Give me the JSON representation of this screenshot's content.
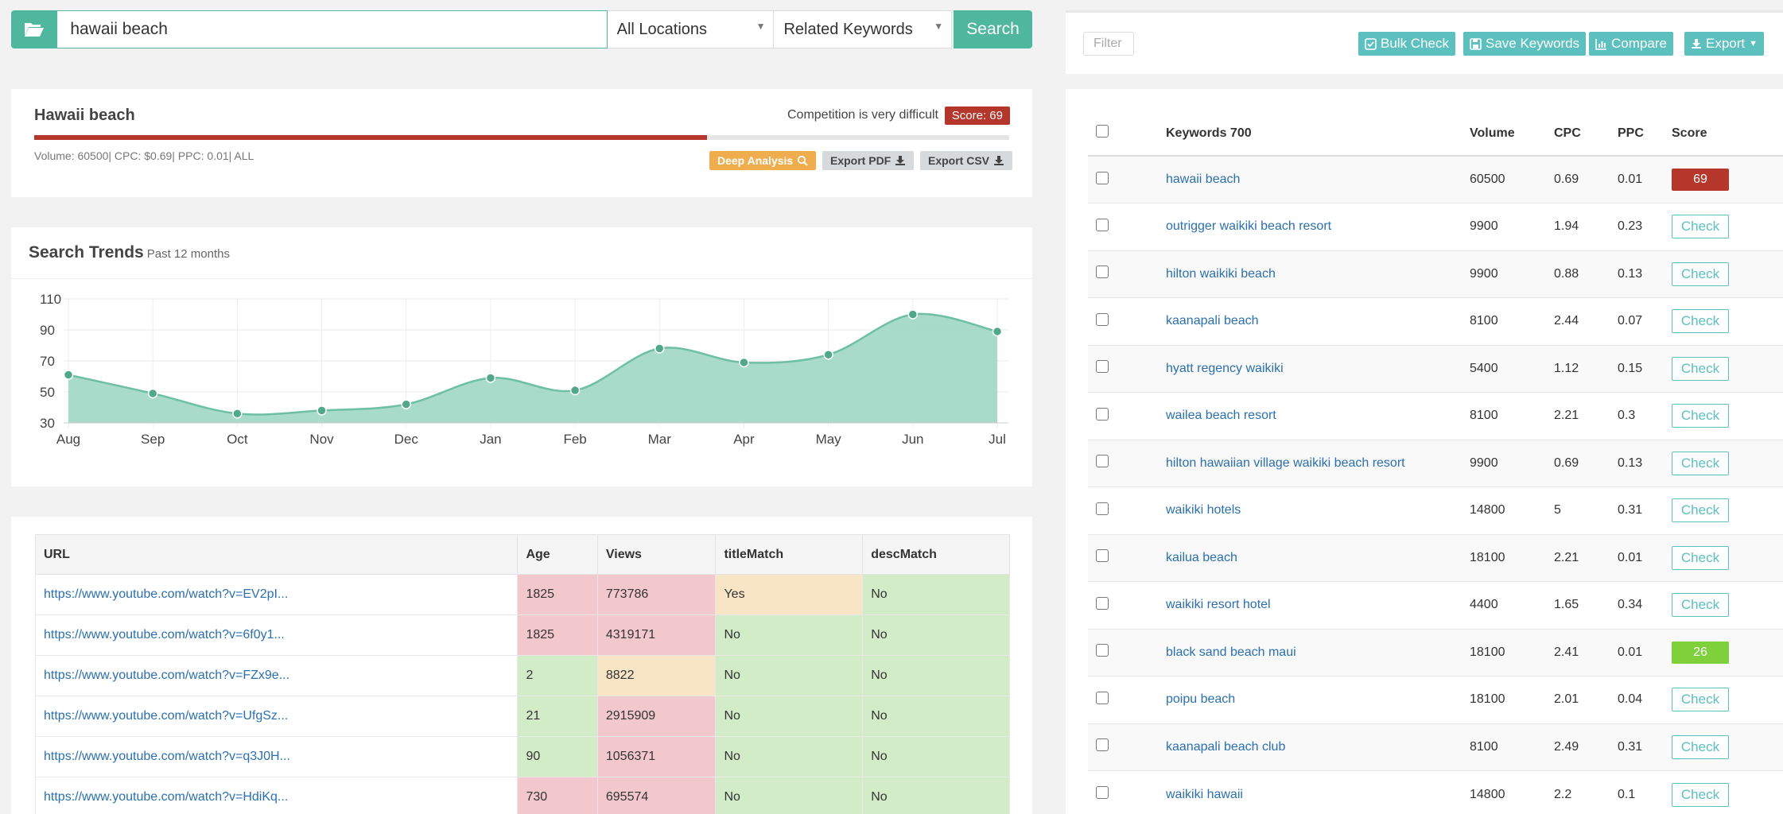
{
  "search": {
    "keyword": "hawaii beach",
    "location": "All Locations",
    "mode": "Related Keywords",
    "button_label": "Search"
  },
  "keyword_card": {
    "title": "Hawaii beach",
    "competition_text": "Competition is very difficult",
    "score_label": "Score: 69",
    "score_value": 69,
    "meta": "Volume: 60500| CPC: $0.69| PPC: 0.01| ALL",
    "deep_analysis_label": "Deep Analysis",
    "export_pdf_label": "Export PDF",
    "export_csv_label": "Export CSV"
  },
  "trends": {
    "title": "Search Trends",
    "subtitle": "Past 12 months"
  },
  "chart_data": {
    "type": "area",
    "categories": [
      "Aug",
      "Sep",
      "Oct",
      "Nov",
      "Dec",
      "Jan",
      "Feb",
      "Mar",
      "Apr",
      "May",
      "Jun",
      "Jul"
    ],
    "values": [
      61,
      49,
      36,
      38,
      42,
      59,
      51,
      78,
      69,
      74,
      100,
      89
    ],
    "ylim": [
      30,
      110
    ],
    "yticks": [
      30,
      50,
      70,
      90,
      110
    ],
    "grid": true,
    "colors": {
      "fill": "#a3d9c7",
      "line": "#6dbfa5",
      "point": "#4fa88a"
    }
  },
  "results": {
    "columns": [
      "URL",
      "Age",
      "Views",
      "titleMatch",
      "descMatch"
    ],
    "rows": [
      {
        "url": "https://www.youtube.com/watch?v=EV2pI...",
        "age": "1825",
        "views": "773786",
        "title": "Yes",
        "desc": "No",
        "c": [
          "red",
          "red",
          "yellow",
          "green"
        ]
      },
      {
        "url": "https://www.youtube.com/watch?v=6f0y1...",
        "age": "1825",
        "views": "4319171",
        "title": "No",
        "desc": "No",
        "c": [
          "red",
          "red",
          "green",
          "green"
        ]
      },
      {
        "url": "https://www.youtube.com/watch?v=FZx9e...",
        "age": "2",
        "views": "8822",
        "title": "No",
        "desc": "No",
        "c": [
          "green",
          "yellow",
          "green",
          "green"
        ]
      },
      {
        "url": "https://www.youtube.com/watch?v=UfgSz...",
        "age": "21",
        "views": "2915909",
        "title": "No",
        "desc": "No",
        "c": [
          "green",
          "red",
          "green",
          "green"
        ]
      },
      {
        "url": "https://www.youtube.com/watch?v=q3J0H...",
        "age": "90",
        "views": "1056371",
        "title": "No",
        "desc": "No",
        "c": [
          "green",
          "red",
          "green",
          "green"
        ]
      },
      {
        "url": "https://www.youtube.com/watch?v=HdiKq...",
        "age": "730",
        "views": "695574",
        "title": "No",
        "desc": "No",
        "c": [
          "red",
          "red",
          "green",
          "green"
        ]
      }
    ]
  },
  "toolbar": {
    "filter_placeholder": "Filter",
    "bulk_check": "Bulk Check",
    "save_keywords": "Save Keywords",
    "compare": "Compare",
    "export": "Export"
  },
  "keywords": {
    "header": {
      "keyword": "Keywords 700",
      "volume": "Volume",
      "cpc": "CPC",
      "ppc": "PPC",
      "score": "Score"
    },
    "check_label": "Check",
    "rows": [
      {
        "kw": "hawaii beach",
        "volume": "60500",
        "cpc": "0.69",
        "ppc": "0.01",
        "score": "69",
        "score_color": "red"
      },
      {
        "kw": "outrigger waikiki beach resort",
        "volume": "9900",
        "cpc": "1.94",
        "ppc": "0.23",
        "score": null
      },
      {
        "kw": "hilton waikiki beach",
        "volume": "9900",
        "cpc": "0.88",
        "ppc": "0.13",
        "score": null
      },
      {
        "kw": "kaanapali beach",
        "volume": "8100",
        "cpc": "2.44",
        "ppc": "0.07",
        "score": null
      },
      {
        "kw": "hyatt regency waikiki",
        "volume": "5400",
        "cpc": "1.12",
        "ppc": "0.15",
        "score": null
      },
      {
        "kw": "wailea beach resort",
        "volume": "8100",
        "cpc": "2.21",
        "ppc": "0.3",
        "score": null
      },
      {
        "kw": "hilton hawaiian village waikiki beach resort",
        "volume": "9900",
        "cpc": "0.69",
        "ppc": "0.13",
        "score": null
      },
      {
        "kw": "waikiki hotels",
        "volume": "14800",
        "cpc": "5",
        "ppc": "0.31",
        "score": null
      },
      {
        "kw": "kailua beach",
        "volume": "18100",
        "cpc": "2.21",
        "ppc": "0.01",
        "score": null
      },
      {
        "kw": "waikiki resort hotel",
        "volume": "4400",
        "cpc": "1.65",
        "ppc": "0.34",
        "score": null
      },
      {
        "kw": "black sand beach maui",
        "volume": "18100",
        "cpc": "2.41",
        "ppc": "0.01",
        "score": "26",
        "score_color": "green"
      },
      {
        "kw": "poipu beach",
        "volume": "18100",
        "cpc": "2.01",
        "ppc": "0.04",
        "score": null
      },
      {
        "kw": "kaanapali beach club",
        "volume": "8100",
        "cpc": "2.49",
        "ppc": "0.31",
        "score": null
      },
      {
        "kw": "waikiki hawaii",
        "volume": "14800",
        "cpc": "2.2",
        "ppc": "0.1",
        "score": null
      }
    ]
  }
}
